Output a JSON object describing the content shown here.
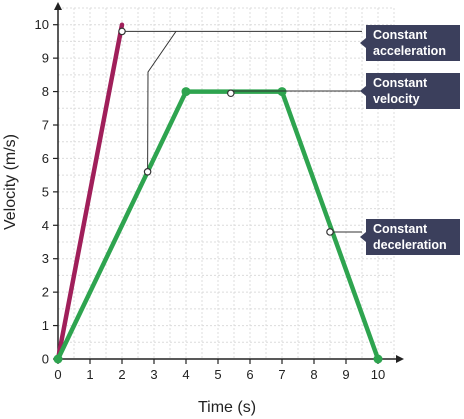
{
  "chart_data": {
    "type": "line",
    "title": "",
    "xlabel": "Time (s)",
    "ylabel": "Velocity (m/s)",
    "xlim": [
      0,
      10.5
    ],
    "ylim": [
      0,
      10.5
    ],
    "x_ticks": [
      0,
      1,
      2,
      3,
      4,
      5,
      6,
      7,
      8,
      9,
      10
    ],
    "y_ticks": [
      0,
      1,
      2,
      3,
      4,
      5,
      6,
      7,
      8,
      9,
      10
    ],
    "grid": "on",
    "series": [
      {
        "color": "#a01f5a",
        "points": [
          [
            0,
            0
          ],
          [
            2,
            10
          ]
        ],
        "markers": []
      },
      {
        "color": "#2ea44f",
        "points": [
          [
            0,
            0
          ],
          [
            4,
            8
          ],
          [
            7,
            8
          ],
          [
            10,
            0
          ]
        ],
        "markers": [
          [
            0,
            0
          ],
          [
            4,
            8
          ],
          [
            7,
            8
          ],
          [
            10,
            0
          ]
        ]
      }
    ],
    "annotations": [
      {
        "label_lines": [
          "Constant",
          "acceleration"
        ],
        "targets": [
          [
            2,
            9.8
          ],
          [
            2.8,
            5.6
          ]
        ]
      },
      {
        "label_lines": [
          "Constant",
          "velocity"
        ],
        "targets": [
          [
            5.4,
            7.95
          ]
        ]
      },
      {
        "label_lines": [
          "Constant",
          "deceleration"
        ],
        "targets": [
          [
            8.5,
            3.8
          ]
        ]
      }
    ],
    "colors": {
      "axis": "#222222",
      "grid": "#dcdcdc",
      "label_box": "#3b3f5c",
      "label_text": "#ffffff",
      "leader": "#333333"
    }
  }
}
